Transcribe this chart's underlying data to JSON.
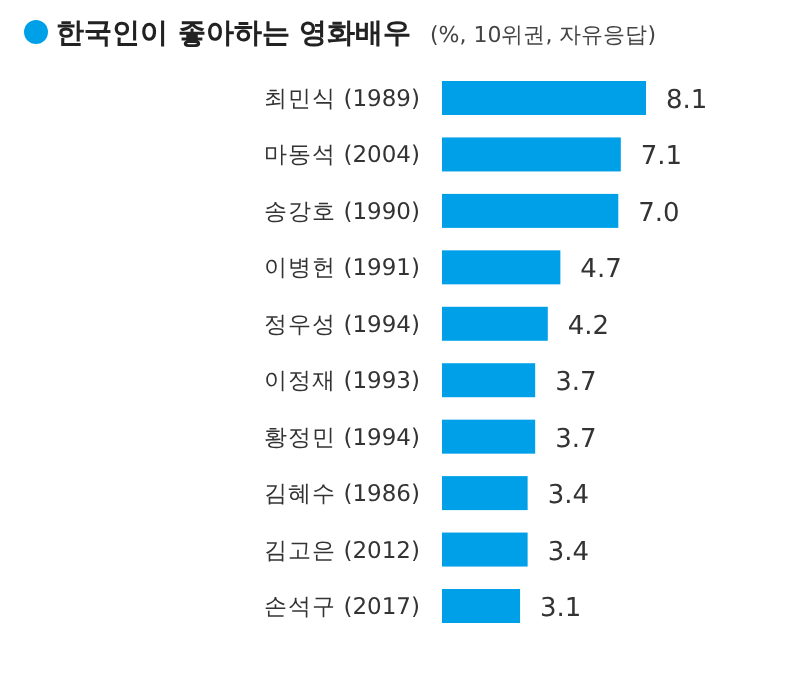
{
  "chart_data": {
    "type": "bar",
    "orientation": "horizontal",
    "title": "한국인이 좋아하는 영화배우",
    "subtitle": "(%, 10위권, 자유응답)",
    "categories": [
      "최민식 (1989)",
      "마동석 (2004)",
      "송강호 (1990)",
      "이병헌 (1991)",
      "정우성 (1994)",
      "이정재 (1993)",
      "황정민 (1994)",
      "김혜수 (1986)",
      "김고은 (2012)",
      "손석구 (2017)"
    ],
    "values": [
      8.1,
      7.1,
      7.0,
      4.7,
      4.2,
      3.7,
      3.7,
      3.4,
      3.4,
      3.1
    ],
    "value_labels": [
      "8.1",
      "7.1",
      "7.0",
      "4.7",
      "4.2",
      "3.7",
      "3.7",
      "3.4",
      "3.4",
      "3.1"
    ],
    "color": "#00a0e9",
    "data_labels": true
  }
}
